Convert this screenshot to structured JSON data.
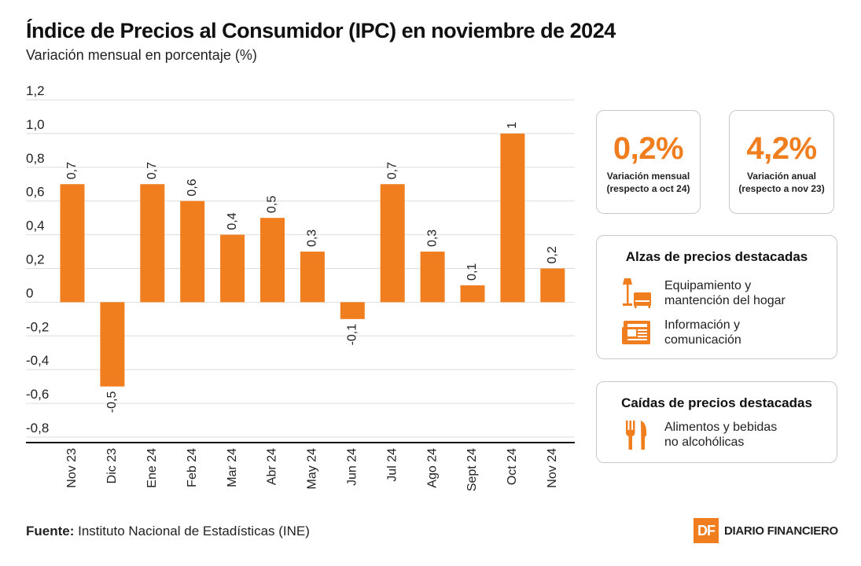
{
  "header": {
    "title": "Índice de Precios al Consumidor (IPC) en noviembre de 2024",
    "subtitle": "Variación mensual en porcentaje (%)"
  },
  "colors": {
    "accent": "#f07e1f",
    "grid": "#dddddd",
    "axis": "#111111"
  },
  "chart_data": {
    "type": "bar",
    "title": "Índice de Precios al Consumidor (IPC) en noviembre de 2024",
    "ylabel": "Variación mensual en porcentaje (%)",
    "xlabel": "",
    "categories": [
      "Nov 23",
      "Dic 23",
      "Ene 24",
      "Feb 24",
      "Mar 24",
      "Abr 24",
      "May 24",
      "Jun 24",
      "Jul 24",
      "Ago 24",
      "Sept 24",
      "Oct 24",
      "Nov 24"
    ],
    "values": [
      0.7,
      -0.5,
      0.7,
      0.6,
      0.4,
      0.5,
      0.3,
      -0.1,
      0.7,
      0.3,
      0.1,
      1,
      0.2
    ],
    "value_labels": [
      "0,7",
      "-0,5",
      "0,7",
      "0,6",
      "0,4",
      "0,5",
      "0,3",
      "-0,1",
      "0,7",
      "0,3",
      "0,1",
      "1",
      "0,2"
    ],
    "yticks": [
      1.2,
      1.0,
      0.8,
      0.6,
      0.4,
      0.2,
      0,
      -0.2,
      -0.4,
      -0.6,
      -0.8
    ],
    "ytick_labels": [
      "1,2",
      "1,0",
      "0,8",
      "0,6",
      "0,4",
      "0,2",
      "0",
      "-0,2",
      "-0,4",
      "-0,6",
      "-0,8"
    ],
    "ylim": [
      -0.8,
      1.2
    ],
    "grid": true
  },
  "stats": {
    "monthly": {
      "value": "0,2%",
      "label_line1": "Variación mensual",
      "label_line2": "(respecto a oct 24)"
    },
    "annual": {
      "value": "4,2%",
      "label_line1": "Variación anual",
      "label_line2": "(respecto a nov 23)"
    }
  },
  "increases": {
    "title": "Alzas de precios destacadas",
    "items": [
      {
        "icon": "furniture-icon",
        "line1": "Equipamiento y",
        "line2": "mantención del hogar"
      },
      {
        "icon": "newspaper-icon",
        "line1": "Información y",
        "line2": "comunicación"
      }
    ]
  },
  "decreases": {
    "title": "Caídas de precios destacadas",
    "items": [
      {
        "icon": "cutlery-icon",
        "line1": "Alimentos y bebidas",
        "line2": "no alcohólicas"
      }
    ]
  },
  "footer": {
    "source_label": "Fuente:",
    "source_text": " Instituto Nacional de Estadísticas (INE)"
  },
  "brand": {
    "logo": "DF",
    "name": "DIARIO FINANCIERO"
  }
}
